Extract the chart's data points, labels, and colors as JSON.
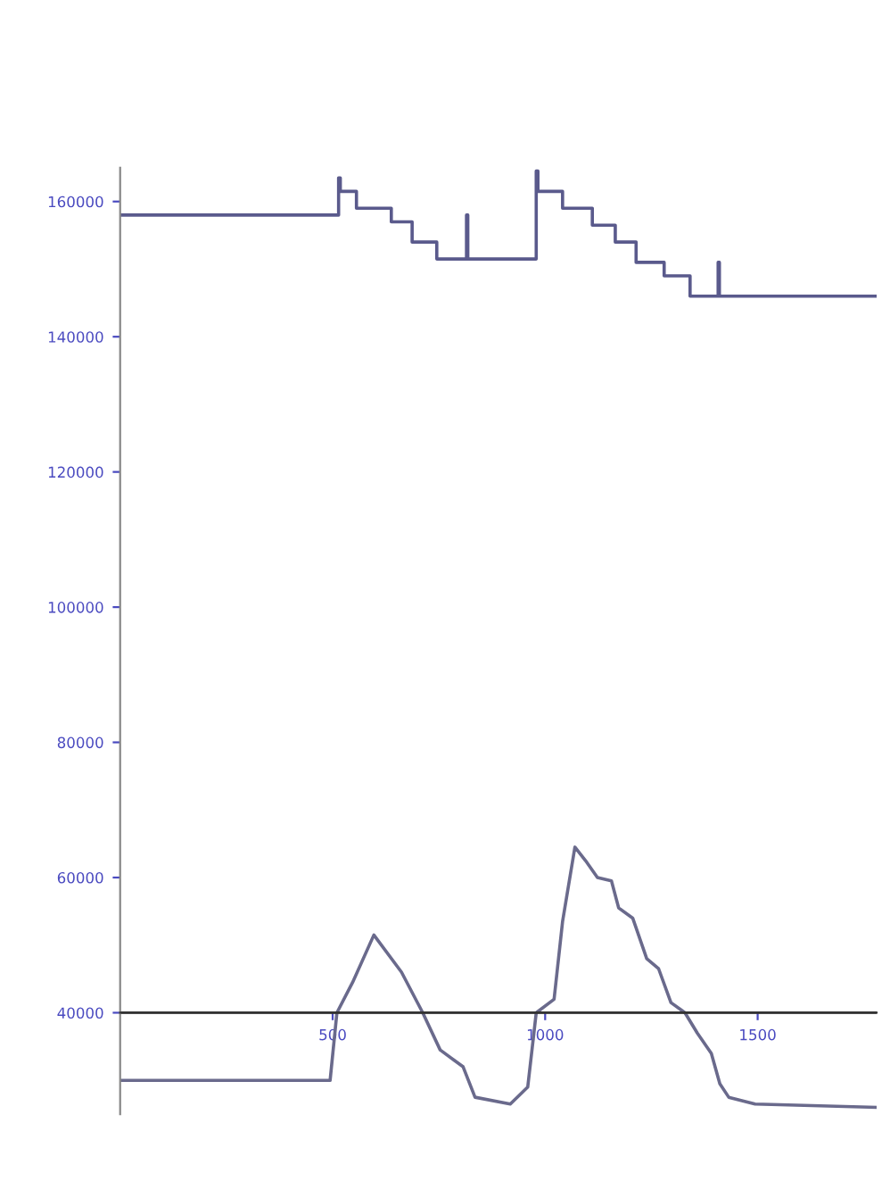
{
  "chart_data": {
    "type": "line",
    "series": [
      {
        "type": "step",
        "color": "#5a5a8c",
        "x": [
          0,
          514,
          518,
          556,
          638,
          687,
          745,
          815,
          818,
          979,
          983,
          1041,
          1111,
          1165,
          1214,
          1280,
          1341,
          1407,
          1410,
          1778
        ],
        "values": [
          158000,
          163500,
          161500,
          159000,
          157000,
          154000,
          151500,
          158000,
          151500,
          164500,
          161500,
          159000,
          156500,
          154000,
          151000,
          149000,
          146000,
          151000,
          146000,
          146000
        ]
      },
      {
        "color": "#6a6a8c",
        "x": [
          0,
          494,
          510,
          547,
          597,
          662,
          712,
          753,
          807,
          835,
          918,
          959,
          979,
          1021,
          1041,
          1070,
          1095,
          1123,
          1156,
          1173,
          1206,
          1239,
          1267,
          1296,
          1329,
          1358,
          1391,
          1411,
          1432,
          1494,
          1778
        ],
        "values": [
          30000,
          30000,
          40000,
          44500,
          51500,
          46000,
          40000,
          34500,
          32000,
          27500,
          26500,
          29000,
          40000,
          42000,
          53500,
          64500,
          62500,
          60000,
          59500,
          55500,
          54000,
          48000,
          46500,
          41500,
          40000,
          37000,
          34000,
          29500,
          27500,
          26500,
          26000
        ]
      }
    ],
    "xlim": [
      0,
      1780
    ],
    "xticks": [
      500,
      1000,
      1500
    ],
    "ylim": [
      25000,
      165000
    ],
    "yticks": [
      40000,
      60000,
      80000,
      100000,
      120000,
      140000,
      160000
    ],
    "ref_lines": [
      {
        "axis": "y",
        "value": 40000,
        "color": "#333333"
      }
    ],
    "grid": false,
    "legend": false
  }
}
